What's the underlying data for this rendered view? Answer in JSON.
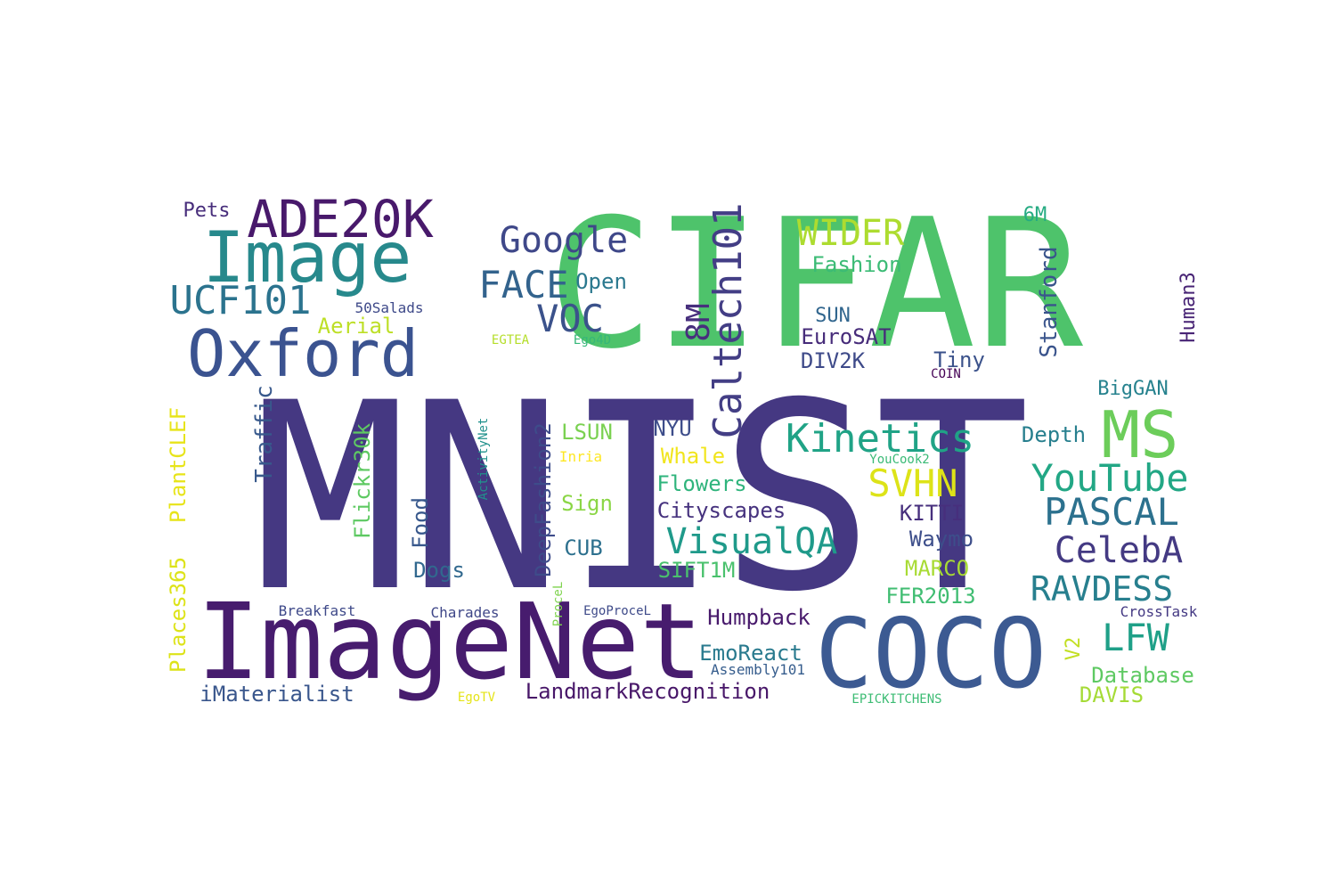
{
  "words": [
    {
      "text": "MNIST",
      "color": "#453882"
    },
    {
      "text": "CIFAR",
      "color": "#4ec36b"
    },
    {
      "text": "ImageNet",
      "color": "#471c6e"
    },
    {
      "text": "COCO",
      "color": "#3c5a92"
    },
    {
      "text": "Image",
      "color": "#27898c"
    },
    {
      "text": "Oxford",
      "color": "#3b5390"
    },
    {
      "text": "ADE20K",
      "color": "#48196b"
    },
    {
      "text": "MS",
      "color": "#6ccd5a"
    },
    {
      "text": "Google",
      "color": "#3f4889"
    },
    {
      "text": "FACE",
      "color": "#33638d"
    },
    {
      "text": "VOC",
      "color": "#3b528b"
    },
    {
      "text": "UCF101",
      "color": "#2b738e"
    },
    {
      "text": "Caltech101",
      "color": "#433e85"
    },
    {
      "text": "8M",
      "color": "#472f7d"
    },
    {
      "text": "Kinetics",
      "color": "#20a386"
    },
    {
      "text": "SVHN",
      "color": "#dde318"
    },
    {
      "text": "YouTube",
      "color": "#22a785"
    },
    {
      "text": "PASCAL",
      "color": "#2c718e"
    },
    {
      "text": "CelebA",
      "color": "#443a83"
    },
    {
      "text": "RAVDESS",
      "color": "#277f8e"
    },
    {
      "text": "LFW",
      "color": "#1fa088"
    },
    {
      "text": "VisualQA",
      "color": "#1f9a8a"
    },
    {
      "text": "WIDER",
      "color": "#addc30"
    },
    {
      "text": "Fashion",
      "color": "#3bbb75"
    },
    {
      "text": "Open",
      "color": "#2a788e"
    },
    {
      "text": "Pets",
      "color": "#472d7b"
    },
    {
      "text": "50Salads",
      "color": "#3e4989"
    },
    {
      "text": "Aerial",
      "color": "#bddf26"
    },
    {
      "text": "EGTEA",
      "color": "#b5de2b"
    },
    {
      "text": "Ego4D",
      "color": "#35b779"
    },
    {
      "text": "SUN",
      "color": "#31668e"
    },
    {
      "text": "EuroSAT",
      "color": "#472c7a"
    },
    {
      "text": "DIV2K",
      "color": "#3e4a89"
    },
    {
      "text": "Tiny",
      "color": "#3b528b"
    },
    {
      "text": "COIN",
      "color": "#440154"
    },
    {
      "text": "6M",
      "color": "#25ab82"
    },
    {
      "text": "Stanford",
      "color": "#3a548c"
    },
    {
      "text": "Human3",
      "color": "#482475"
    },
    {
      "text": "BigGAN",
      "color": "#26828e"
    },
    {
      "text": "Depth",
      "color": "#277f8e"
    },
    {
      "text": "Traffic",
      "color": "#38598c"
    },
    {
      "text": "PlantCLEF",
      "color": "#e7e419"
    },
    {
      "text": "Places365",
      "color": "#dde318"
    },
    {
      "text": "Flickr30k",
      "color": "#5ec962"
    },
    {
      "text": "ActivityNet",
      "color": "#21918c"
    },
    {
      "text": "Food",
      "color": "#38588c"
    },
    {
      "text": "Dogs",
      "color": "#31688e"
    },
    {
      "text": "DeepFashion2",
      "color": "#3e4c8a"
    },
    {
      "text": "LSUN",
      "color": "#7ad151"
    },
    {
      "text": "Inria",
      "color": "#fde725"
    },
    {
      "text": "Sign",
      "color": "#8bd646"
    },
    {
      "text": "CUB",
      "color": "#2d708e"
    },
    {
      "text": "ProceL",
      "color": "#7fd34e"
    },
    {
      "text": "NYU",
      "color": "#3d4d8a"
    },
    {
      "text": "Whale",
      "color": "#f1e51d"
    },
    {
      "text": "Flowers",
      "color": "#2fb47c"
    },
    {
      "text": "Cityscapes",
      "color": "#46327e"
    },
    {
      "text": "SIFT1M",
      "color": "#4ac16d"
    },
    {
      "text": "KITTI",
      "color": "#472f7d"
    },
    {
      "text": "Waymo",
      "color": "#3d4e8a"
    },
    {
      "text": "MARCO",
      "color": "#a8db34"
    },
    {
      "text": "FER2013",
      "color": "#40bd72"
    },
    {
      "text": "YouCook2",
      "color": "#3aba76"
    },
    {
      "text": "Humpback",
      "color": "#481a6c"
    },
    {
      "text": "EmoReact",
      "color": "#297a8e"
    },
    {
      "text": "Assembly101",
      "color": "#365d8d"
    },
    {
      "text": "EgoProceL",
      "color": "#3e4a89"
    },
    {
      "text": "CrossTask",
      "color": "#443983"
    },
    {
      "text": "Breakfast",
      "color": "#3e4989"
    },
    {
      "text": "Charades",
      "color": "#3f4788"
    },
    {
      "text": "LandmarkRecognition",
      "color": "#481769"
    },
    {
      "text": "iMaterialist",
      "color": "#39568c"
    },
    {
      "text": "EgoTV",
      "color": "#e5e419"
    },
    {
      "text": "EPICKITCHENS",
      "color": "#3dbc74"
    },
    {
      "text": "V2",
      "color": "#c2df23"
    },
    {
      "text": "Database",
      "color": "#5ec962"
    },
    {
      "text": "DAVIS",
      "color": "#a5db36"
    }
  ]
}
